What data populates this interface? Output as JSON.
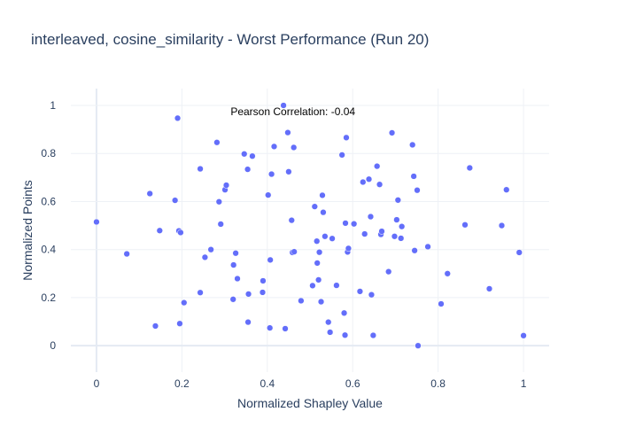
{
  "chart_data": {
    "type": "scatter",
    "title": "interleaved, cosine_similarity - Worst Performance (Run 20)",
    "xlabel": "Normalized Shapley Value",
    "ylabel": "Normalized Points",
    "xlim": [
      -0.06,
      1.06
    ],
    "ylim": [
      -0.11,
      1.07
    ],
    "xticks": [
      0,
      0.2,
      0.4,
      0.6,
      0.8,
      1
    ],
    "xtick_labels": [
      "0",
      "0.2",
      "0.4",
      "0.6",
      "0.8",
      "1"
    ],
    "yticks": [
      0,
      0.2,
      0.4,
      0.6,
      0.8,
      1
    ],
    "ytick_labels": [
      "0",
      "0.2",
      "0.4",
      "0.6",
      "0.8",
      "1"
    ],
    "grid": true,
    "legend": "none",
    "marker_color": "#636efa",
    "annotation": {
      "text": "Pearson Correlation: -0.04",
      "x": 0.46,
      "y": 0.975
    },
    "points": [
      [
        0.0,
        0.515
      ],
      [
        0.071,
        0.382
      ],
      [
        0.125,
        0.633
      ],
      [
        0.138,
        0.082
      ],
      [
        0.148,
        0.479
      ],
      [
        0.184,
        0.605
      ],
      [
        0.19,
        0.947
      ],
      [
        0.193,
        0.478
      ],
      [
        0.195,
        0.092
      ],
      [
        0.197,
        0.471
      ],
      [
        0.205,
        0.179
      ],
      [
        0.243,
        0.221
      ],
      [
        0.243,
        0.736
      ],
      [
        0.254,
        0.368
      ],
      [
        0.268,
        0.4
      ],
      [
        0.282,
        0.846
      ],
      [
        0.287,
        0.599
      ],
      [
        0.291,
        0.506
      ],
      [
        0.301,
        0.649
      ],
      [
        0.304,
        0.668
      ],
      [
        0.32,
        0.193
      ],
      [
        0.321,
        0.336
      ],
      [
        0.326,
        0.385
      ],
      [
        0.33,
        0.279
      ],
      [
        0.346,
        0.798
      ],
      [
        0.354,
        0.734
      ],
      [
        0.355,
        0.098
      ],
      [
        0.356,
        0.215
      ],
      [
        0.365,
        0.789
      ],
      [
        0.389,
        0.222
      ],
      [
        0.39,
        0.27
      ],
      [
        0.402,
        0.627
      ],
      [
        0.406,
        0.074
      ],
      [
        0.407,
        0.357
      ],
      [
        0.41,
        0.714
      ],
      [
        0.416,
        0.829
      ],
      [
        0.438,
        1.0
      ],
      [
        0.442,
        0.071
      ],
      [
        0.448,
        0.887
      ],
      [
        0.45,
        0.724
      ],
      [
        0.457,
        0.522
      ],
      [
        0.459,
        0.388
      ],
      [
        0.462,
        0.825
      ],
      [
        0.463,
        0.391
      ],
      [
        0.479,
        0.187
      ],
      [
        0.506,
        0.25
      ],
      [
        0.511,
        0.579
      ],
      [
        0.516,
        0.435
      ],
      [
        0.517,
        0.344
      ],
      [
        0.52,
        0.274
      ],
      [
        0.522,
        0.389
      ],
      [
        0.526,
        0.183
      ],
      [
        0.529,
        0.626
      ],
      [
        0.531,
        0.555
      ],
      [
        0.535,
        0.455
      ],
      [
        0.543,
        0.098
      ],
      [
        0.547,
        0.056
      ],
      [
        0.552,
        0.446
      ],
      [
        0.562,
        0.251
      ],
      [
        0.575,
        0.794
      ],
      [
        0.58,
        0.136
      ],
      [
        0.582,
        0.044
      ],
      [
        0.583,
        0.51
      ],
      [
        0.585,
        0.866
      ],
      [
        0.588,
        0.39
      ],
      [
        0.59,
        0.405
      ],
      [
        0.603,
        0.507
      ],
      [
        0.617,
        0.226
      ],
      [
        0.624,
        0.681
      ],
      [
        0.628,
        0.465
      ],
      [
        0.638,
        0.693
      ],
      [
        0.642,
        0.537
      ],
      [
        0.644,
        0.212
      ],
      [
        0.648,
        0.043
      ],
      [
        0.657,
        0.747
      ],
      [
        0.663,
        0.671
      ],
      [
        0.666,
        0.463
      ],
      [
        0.668,
        0.476
      ],
      [
        0.684,
        0.308
      ],
      [
        0.692,
        0.886
      ],
      [
        0.698,
        0.455
      ],
      [
        0.703,
        0.524
      ],
      [
        0.706,
        0.606
      ],
      [
        0.713,
        0.447
      ],
      [
        0.715,
        0.496
      ],
      [
        0.74,
        0.836
      ],
      [
        0.743,
        0.705
      ],
      [
        0.745,
        0.396
      ],
      [
        0.751,
        0.647
      ],
      [
        0.753,
        0.0
      ],
      [
        0.776,
        0.412
      ],
      [
        0.807,
        0.174
      ],
      [
        0.822,
        0.3
      ],
      [
        0.863,
        0.503
      ],
      [
        0.874,
        0.74
      ],
      [
        0.92,
        0.237
      ],
      [
        0.949,
        0.5
      ],
      [
        0.96,
        0.649
      ],
      [
        0.99,
        0.388
      ],
      [
        1.0,
        0.042
      ]
    ]
  }
}
